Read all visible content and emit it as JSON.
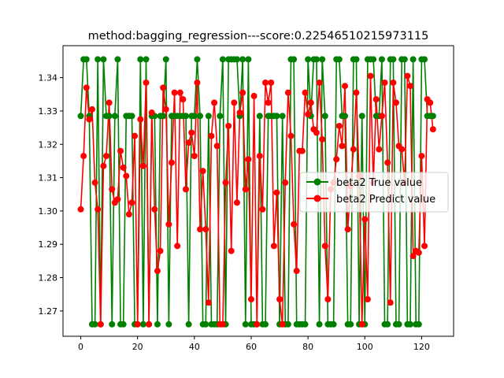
{
  "chart_data": {
    "type": "line",
    "title": "method:bagging_regression---score:0.22546510215973115",
    "xlabel": "",
    "ylabel": "",
    "xlim": [
      -6.25,
      131.25
    ],
    "ylim": [
      1.2624,
      1.3496
    ],
    "x_ticks": [
      0,
      20,
      40,
      60,
      80,
      100,
      120
    ],
    "y_ticks": [
      1.27,
      1.28,
      1.29,
      1.3,
      1.31,
      1.32,
      1.33,
      1.34
    ],
    "y_tick_labels": [
      "1.27",
      "1.28",
      "1.29",
      "1.30",
      "1.31",
      "1.32",
      "1.33",
      "1.34"
    ],
    "grid": false,
    "legend_position": "center-right",
    "series": [
      {
        "name": "beta2 True value",
        "color": "#008000",
        "values": [
          1.3285,
          1.3455,
          1.3455,
          1.3285,
          1.266,
          1.266,
          1.3455,
          1.266,
          1.3455,
          1.3285,
          1.3285,
          1.266,
          1.3285,
          1.3455,
          1.266,
          1.266,
          1.3285,
          1.3285,
          1.3285,
          1.266,
          1.266,
          1.3455,
          1.266,
          1.3455,
          1.266,
          1.3285,
          1.3285,
          1.266,
          1.3285,
          1.3285,
          1.3455,
          1.266,
          1.3285,
          1.3285,
          1.3285,
          1.3285,
          1.3285,
          1.3285,
          1.266,
          1.3285,
          1.3285,
          1.3455,
          1.3285,
          1.266,
          1.266,
          1.3285,
          1.266,
          1.266,
          1.266,
          1.3285,
          1.3455,
          1.266,
          1.3455,
          1.3455,
          1.3455,
          1.3455,
          1.3285,
          1.3455,
          1.266,
          1.3455,
          1.266,
          1.266,
          1.266,
          1.3285,
          1.266,
          1.266,
          1.3285,
          1.3285,
          1.3285,
          1.3285,
          1.266,
          1.3285,
          1.266,
          1.266,
          1.3455,
          1.3455,
          1.266,
          1.266,
          1.266,
          1.266,
          1.3455,
          1.3285,
          1.3455,
          1.3455,
          1.266,
          1.3455,
          1.3285,
          1.266,
          1.266,
          1.266,
          1.3455,
          1.3455,
          1.3285,
          1.3285,
          1.266,
          1.266,
          1.3455,
          1.3455,
          1.266,
          1.3285,
          1.266,
          1.3455,
          1.3455,
          1.3455,
          1.3285,
          1.3285,
          1.3455,
          1.266,
          1.266,
          1.3455,
          1.3455,
          1.266,
          1.266,
          1.3455,
          1.3455,
          1.266,
          1.266,
          1.3455,
          1.266,
          1.266,
          1.3455,
          1.3455,
          1.3285,
          1.3285,
          1.3285
        ]
      },
      {
        "name": "beta2 Predict value",
        "color": "#ff0000",
        "values": [
          1.3005,
          1.3165,
          1.337,
          1.3275,
          1.3305,
          1.3085,
          1.3005,
          1.266,
          1.3135,
          1.3165,
          1.3325,
          1.3065,
          1.3025,
          1.3035,
          1.318,
          1.313,
          1.3105,
          1.299,
          1.3025,
          1.3225,
          1.266,
          1.3275,
          1.3135,
          1.3385,
          1.266,
          1.3295,
          1.3005,
          1.282,
          1.288,
          1.337,
          1.3305,
          1.296,
          1.3145,
          1.3355,
          1.2895,
          1.3355,
          1.3335,
          1.3065,
          1.3205,
          1.3235,
          1.3165,
          1.3385,
          1.2945,
          1.312,
          1.2945,
          1.2725,
          1.3225,
          1.3325,
          1.3195,
          1.266,
          1.266,
          1.3085,
          1.3255,
          1.288,
          1.3325,
          1.3025,
          1.3295,
          1.3355,
          1.3065,
          1.3155,
          1.2735,
          1.3345,
          1.266,
          1.3165,
          1.3005,
          1.3385,
          1.3325,
          1.3385,
          1.2895,
          1.3055,
          1.2735,
          1.266,
          1.3085,
          1.3355,
          1.3225,
          1.296,
          1.282,
          1.318,
          1.318,
          1.3355,
          1.329,
          1.3325,
          1.3245,
          1.3235,
          1.3385,
          1.3215,
          1.2895,
          1.2735,
          1.3065,
          1.3085,
          1.3155,
          1.3255,
          1.3195,
          1.3375,
          1.2945,
          1.3075,
          1.3185,
          1.3355,
          1.3105,
          1.266,
          1.2975,
          1.2735,
          1.3405,
          1.3085,
          1.3335,
          1.3185,
          1.3285,
          1.3385,
          1.3145,
          1.2725,
          1.3385,
          1.3325,
          1.3195,
          1.3185,
          1.3085,
          1.3405,
          1.3375,
          1.2865,
          1.288,
          1.2875,
          1.3165,
          1.2895,
          1.3335,
          1.3325,
          1.3245
        ]
      }
    ]
  }
}
